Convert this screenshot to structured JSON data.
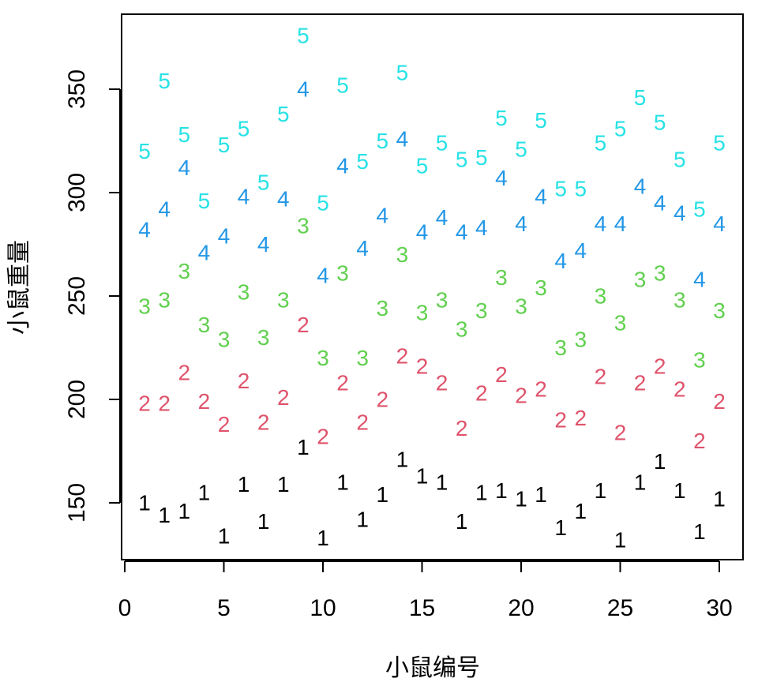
{
  "chart_data": {
    "type": "scatter",
    "xlabel": "小鼠编号",
    "ylabel": "小鼠重量",
    "xlim": [
      0,
      30
    ],
    "ylim": [
      130,
      380
    ],
    "x_ticks": [
      0,
      5,
      10,
      15,
      20,
      25,
      30
    ],
    "y_ticks": [
      150,
      200,
      250,
      300,
      350
    ],
    "grid": false,
    "legend": "none",
    "x": [
      1,
      2,
      3,
      4,
      5,
      6,
      7,
      8,
      9,
      10,
      11,
      12,
      13,
      14,
      15,
      16,
      17,
      18,
      19,
      20,
      21,
      22,
      23,
      24,
      25,
      26,
      27,
      28,
      29,
      30
    ],
    "series": [
      {
        "marker": "1",
        "color": "#000000",
        "values": [
          150,
          144,
          146,
          155,
          134,
          159,
          141,
          159,
          177,
          133,
          160,
          142,
          154,
          171,
          163,
          160,
          141,
          155,
          156,
          152,
          154,
          138,
          146,
          156,
          132,
          160,
          170,
          156,
          136,
          152
        ]
      },
      {
        "marker": "2",
        "color": "#DF536B",
        "values": [
          198,
          198,
          213,
          199,
          188,
          209,
          189,
          201,
          236,
          182,
          208,
          189,
          200,
          221,
          216,
          208,
          186,
          203,
          212,
          202,
          205,
          190,
          191,
          211,
          184,
          208,
          216,
          205,
          180,
          199
        ]
      },
      {
        "marker": "3",
        "color": "#61D04F",
        "values": [
          245,
          248,
          262,
          236,
          229,
          252,
          230,
          248,
          284,
          220,
          261,
          220,
          244,
          270,
          242,
          248,
          234,
          243,
          259,
          245,
          254,
          225,
          229,
          250,
          237,
          258,
          261,
          248,
          219,
          243
        ]
      },
      {
        "marker": "4",
        "color": "#2297E6",
        "values": [
          282,
          292,
          312,
          271,
          279,
          298,
          275,
          297,
          350,
          260,
          313,
          273,
          289,
          326,
          281,
          288,
          281,
          283,
          307,
          285,
          298,
          267,
          272,
          285,
          285,
          303,
          295,
          290,
          258,
          285
        ]
      },
      {
        "marker": "5",
        "color": "#28E2E5",
        "values": [
          320,
          354,
          328,
          296,
          323,
          331,
          305,
          338,
          376,
          295,
          352,
          315,
          325,
          358,
          313,
          324,
          316,
          317,
          336,
          321,
          335,
          302,
          302,
          324,
          331,
          346,
          334,
          316,
          292,
          324
        ]
      }
    ]
  }
}
